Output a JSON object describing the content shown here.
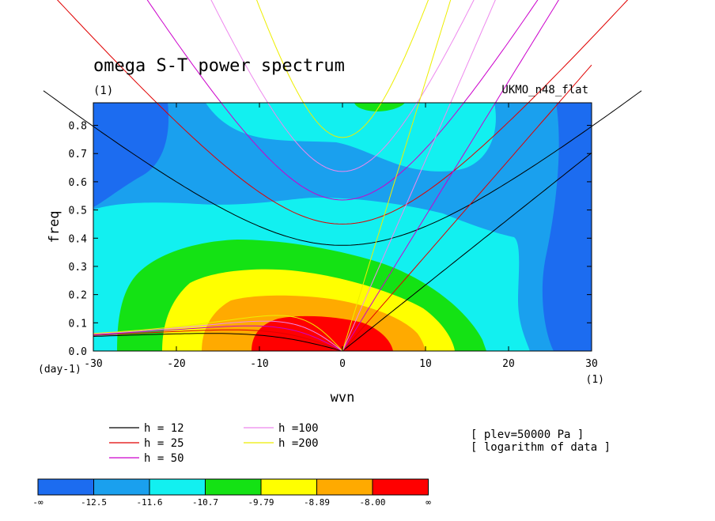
{
  "chart_data": {
    "type": "heatmap",
    "title": "omega S-T power spectrum",
    "subtitle": "(1)",
    "dataset_label": "UKMO_n48_flat",
    "xlabel": "wvn",
    "ylabel": "freq",
    "x_unit": "(1)",
    "y_unit": "(day-1)",
    "xlim": [
      -30,
      30
    ],
    "ylim": [
      0,
      0.88
    ],
    "x_ticks": [
      "-30",
      "-20",
      "-10",
      "0",
      "10",
      "20",
      "30"
    ],
    "y_ticks": [
      "0.0",
      "0.1",
      "0.2",
      "0.3",
      "0.4",
      "0.5",
      "0.6",
      "0.7",
      "0.8"
    ],
    "annotations": [
      "[ plev=50000 Pa ]",
      "[ logarithm of data ]"
    ],
    "colorbar": {
      "labels": [
        "-∞",
        "-12.5",
        "-11.6",
        "-10.7",
        "-9.79",
        "-8.89",
        "-8.00",
        "∞"
      ],
      "colors": [
        "#1c6cf0",
        "#1aa0ee",
        "#12f0f0",
        "#14e214",
        "#ffff00",
        "#ffaa00",
        "#ff0000"
      ]
    },
    "dispersion_curves": [
      {
        "label": "h = 12",
        "h": 12,
        "color": "#000000"
      },
      {
        "label": "h = 25",
        "h": 25,
        "color": "#e00000"
      },
      {
        "label": "h = 50",
        "h": 50,
        "color": "#cc00cc"
      },
      {
        "label": "h =100",
        "h": 100,
        "color": "#ee88ee"
      },
      {
        "label": "h =200",
        "h": 200,
        "color": "#eeee00"
      }
    ]
  }
}
